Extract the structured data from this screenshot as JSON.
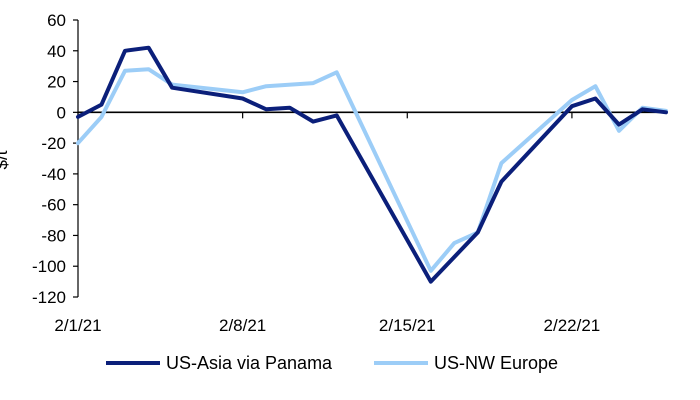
{
  "chart_data": {
    "type": "line",
    "title": "",
    "xlabel": "",
    "ylabel": "$/t",
    "ylim": [
      -120,
      60
    ],
    "yticks": [
      -120,
      -100,
      -80,
      -60,
      -40,
      -20,
      0,
      20,
      40,
      60
    ],
    "xlim": [
      "2021-02-01",
      "2021-02-26"
    ],
    "xticks": [
      {
        "date": "2021-02-01",
        "label": "2/1/21"
      },
      {
        "date": "2021-02-08",
        "label": "2/8/21"
      },
      {
        "date": "2021-02-15",
        "label": "2/15/21"
      },
      {
        "date": "2021-02-22",
        "label": "2/22/21"
      }
    ],
    "grid": false,
    "legend_position": "bottom",
    "series": [
      {
        "name": "US-Asia via Panama",
        "color": "#0b1f7a",
        "points": [
          [
            "2021-02-01",
            -3
          ],
          [
            "2021-02-02",
            5
          ],
          [
            "2021-02-03",
            40
          ],
          [
            "2021-02-04",
            42
          ],
          [
            "2021-02-05",
            16
          ],
          [
            "2021-02-08",
            9
          ],
          [
            "2021-02-09",
            2
          ],
          [
            "2021-02-10",
            3
          ],
          [
            "2021-02-11",
            -6
          ],
          [
            "2021-02-12",
            -2
          ],
          [
            "2021-02-16",
            -110
          ],
          [
            "2021-02-18",
            -78
          ],
          [
            "2021-02-19",
            -45
          ],
          [
            "2021-02-22",
            4
          ],
          [
            "2021-02-23",
            9
          ],
          [
            "2021-02-24",
            -8
          ],
          [
            "2021-02-25",
            2
          ],
          [
            "2021-02-26",
            0
          ]
        ]
      },
      {
        "name": "US-NW Europe",
        "color": "#9ccdf7",
        "points": [
          [
            "2021-02-01",
            -20
          ],
          [
            "2021-02-02",
            -3
          ],
          [
            "2021-02-03",
            27
          ],
          [
            "2021-02-04",
            28
          ],
          [
            "2021-02-05",
            18
          ],
          [
            "2021-02-08",
            13
          ],
          [
            "2021-02-09",
            17
          ],
          [
            "2021-02-11",
            19
          ],
          [
            "2021-02-12",
            26
          ],
          [
            "2021-02-16",
            -103
          ],
          [
            "2021-02-17",
            -85
          ],
          [
            "2021-02-18",
            -78
          ],
          [
            "2021-02-19",
            -33
          ],
          [
            "2021-02-22",
            8
          ],
          [
            "2021-02-23",
            17
          ],
          [
            "2021-02-24",
            -12
          ],
          [
            "2021-02-25",
            3
          ],
          [
            "2021-02-26",
            1
          ]
        ]
      }
    ]
  }
}
